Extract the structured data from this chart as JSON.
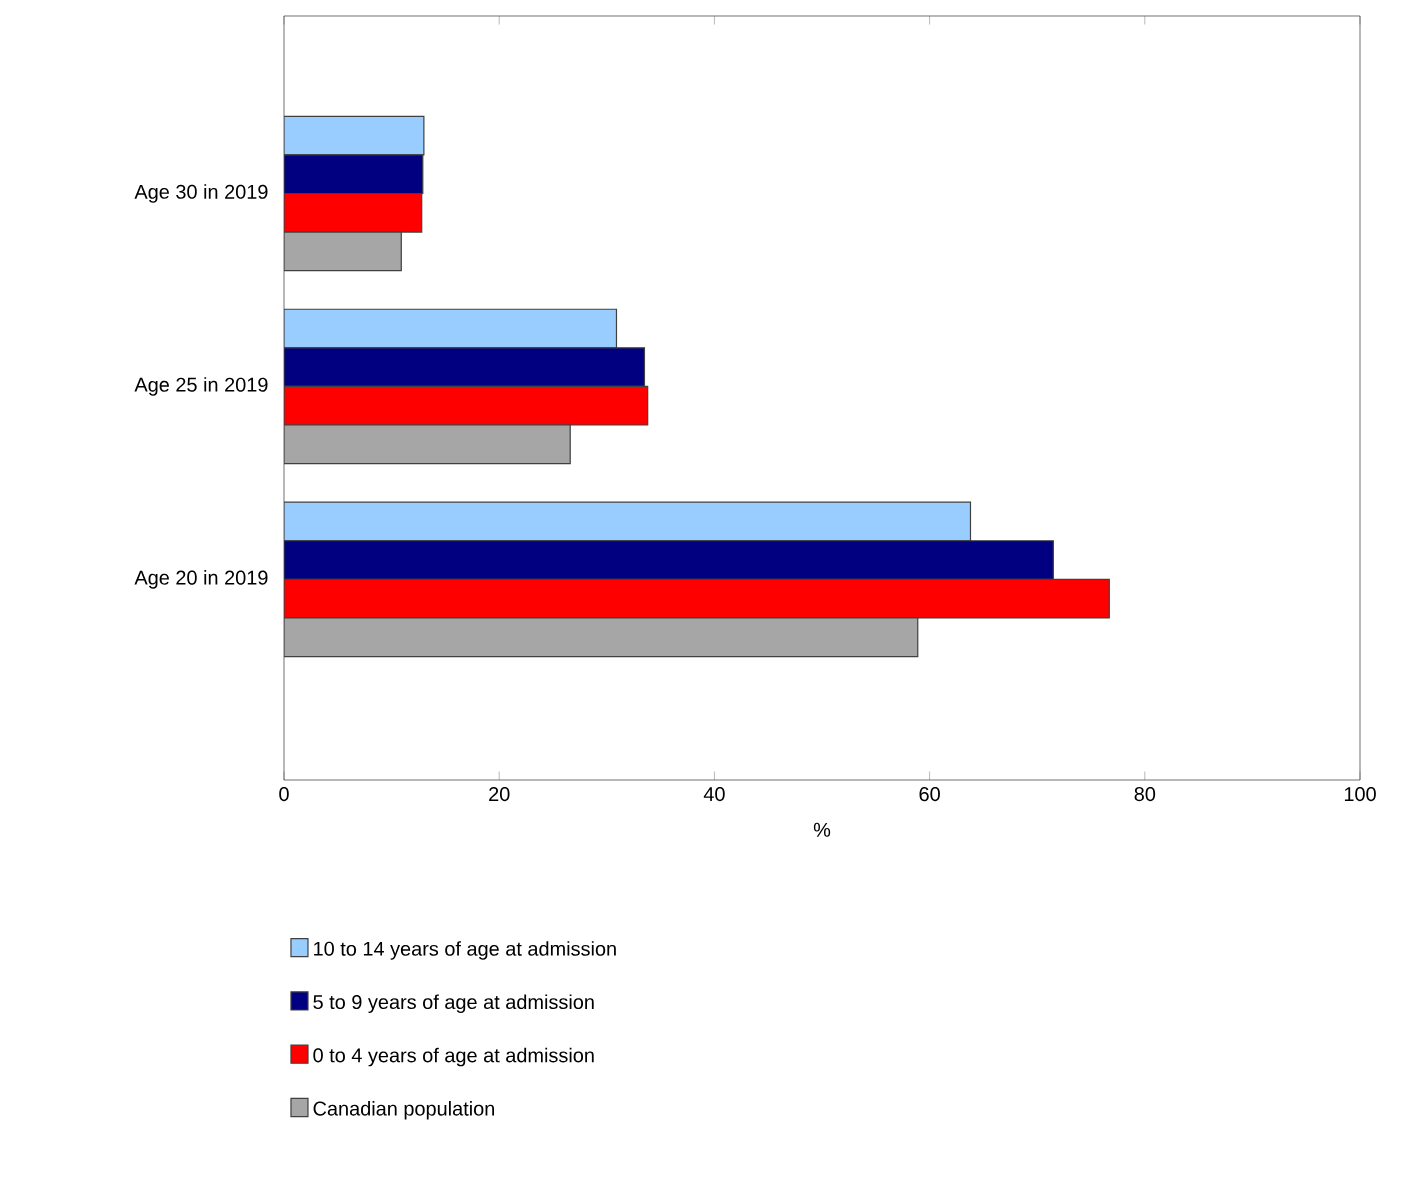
{
  "chart_data": {
    "type": "bar",
    "orientation": "horizontal",
    "xlabel": "%",
    "categories": [
      "Age 30 in 2019",
      "Age 25 in 2019",
      "Age 20 in 2019"
    ],
    "series": [
      {
        "name": "10 to 14 years of age at admission",
        "color": "#99ccff",
        "values": [
          13.0,
          30.9,
          63.8
        ]
      },
      {
        "name": "5 to 9 years of age at admission",
        "color": "#000080",
        "values": [
          12.9,
          33.5,
          71.5
        ]
      },
      {
        "name": "0 to 4 years of age at admission",
        "color": "#ff0000",
        "values": [
          12.8,
          33.8,
          76.7
        ]
      },
      {
        "name": "Canadian population",
        "color": "#a6a6a6",
        "values": [
          10.9,
          26.6,
          58.9
        ]
      }
    ],
    "xlim": [
      0,
      100
    ],
    "xticks": [
      0,
      20,
      40,
      60,
      80,
      100
    ],
    "grid": false,
    "legend": "bottom"
  }
}
